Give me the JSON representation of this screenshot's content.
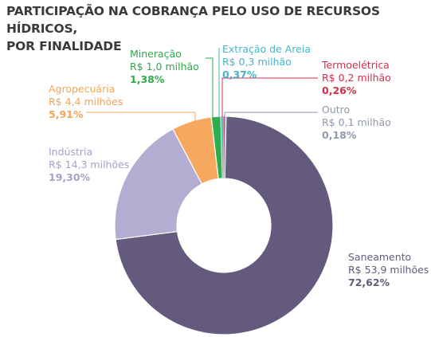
{
  "title_line1": "PARTICIPAÇÃO NA COBRANÇA PELO USO DE RECURSOS HÍDRICOS,",
  "title_line2": "POR FINALIDADE",
  "chart_data": {
    "type": "pie",
    "title": "PARTICIPAÇÃO NA COBRANÇA PELO USO DE RECURSOS HÍDRICOS, POR FINALIDADE",
    "donut": true,
    "grid": false,
    "legend": "none",
    "slices": [
      {
        "name": "Saneamento",
        "value_text": "R$ 53,9 milhões",
        "value": 53.9,
        "percent": 72.62,
        "percent_text": "72,62%",
        "color": "#645a7e",
        "label_color": "#645a7e"
      },
      {
        "name": "Indústria",
        "value_text": "R$ 14,3 milhões",
        "value": 14.3,
        "percent": 19.3,
        "percent_text": "19,30%",
        "color": "#b3aed1",
        "label_color": "#a6a1c9"
      },
      {
        "name": "Agropecuária",
        "value_text": "R$ 4,4 milhões",
        "value": 4.4,
        "percent": 5.91,
        "percent_text": "5,91%",
        "color": "#f5a85e",
        "label_color": "#f2a45a"
      },
      {
        "name": "Mineração",
        "value_text": "R$ 1,0 milhão",
        "value": 1.0,
        "percent": 1.38,
        "percent_text": "1,38%",
        "color": "#2dae4a",
        "label_color": "#2ea84a"
      },
      {
        "name": "Extração de Areia",
        "value_text": "R$ 0,3 milhão",
        "value": 0.3,
        "percent": 0.37,
        "percent_text": "0,37%",
        "color": "#4fbfcf",
        "label_color": "#45b5c8"
      },
      {
        "name": "Termoelétrica",
        "value_text": "R$ 0,2 milhão",
        "value": 0.2,
        "percent": 0.26,
        "percent_text": "0,26%",
        "color": "#d9344f",
        "label_color": "#d42e4c"
      },
      {
        "name": "Outro",
        "value_text": "R$ 0,1 milhão",
        "value": 0.1,
        "percent": 0.18,
        "percent_text": "0,18%",
        "color": "#9aa3b8",
        "label_color": "#8f99ad"
      }
    ]
  }
}
